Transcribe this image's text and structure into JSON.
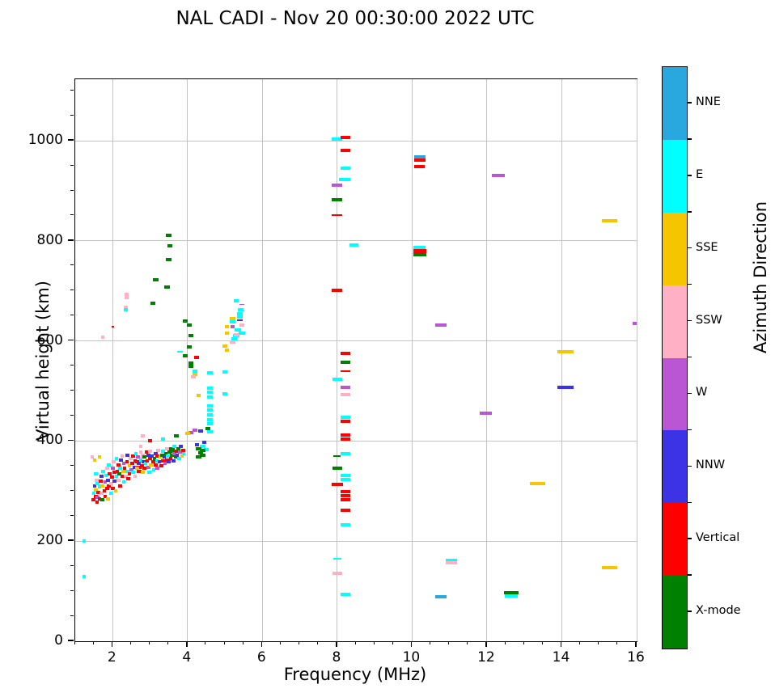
{
  "chart_data": {
    "type": "scatter",
    "title": "NAL CADI - Nov 20 00:30:00 2022 UTC",
    "xlabel": "Frequency (MHz)",
    "ylabel": "Virtual height (km)",
    "x_range": [
      1.0,
      16.0
    ],
    "y_range": [
      0,
      1123
    ],
    "x_major_ticks": [
      2,
      4,
      6,
      8,
      10,
      12,
      14,
      16
    ],
    "x_minor_step": 0.5,
    "y_major_ticks": [
      0,
      200,
      400,
      600,
      800,
      1000
    ],
    "y_minor_step": 50,
    "grid": true,
    "grid_color": "#c4c4c4",
    "colorbar": {
      "title": "Azimuth Direction",
      "categories_top_to_bottom": [
        {
          "label": "NNE",
          "color": "#29a8e0"
        },
        {
          "label": "E",
          "color": "#00ffff"
        },
        {
          "label": "SSE",
          "color": "#f5c600"
        },
        {
          "label": "SSW",
          "color": "#ffb0c4"
        },
        {
          "label": "W",
          "color": "#ba55d3"
        },
        {
          "label": "NNW",
          "color": "#3c33e6"
        },
        {
          "label": "Vertical",
          "color": "#ff0000"
        },
        {
          "label": "X-mode",
          "color": "#008000"
        }
      ]
    },
    "palette_index_order": [
      "NNE",
      "E",
      "SSE",
      "SSW",
      "W",
      "NNW",
      "Vertical",
      "X-mode"
    ],
    "point_format": "[freq_MHz, height_km, category_index, width_MHz(optional, default 0.13), thickness_km(optional, default 6.5)]",
    "points": [
      [
        7.99,
        1003,
        1,
        0.28
      ],
      [
        8.22,
        1006,
        6,
        0.25
      ],
      [
        8.22,
        981,
        6,
        0.25
      ],
      [
        8.22,
        945,
        1,
        0.25
      ],
      [
        8.2,
        922,
        1,
        0.3
      ],
      [
        8.0,
        912,
        4,
        0.28
      ],
      [
        8.0,
        882,
        7,
        0.28
      ],
      [
        8.0,
        852,
        6,
        0.28,
        3
      ],
      [
        8.45,
        791,
        1,
        0.25
      ],
      [
        8.0,
        702,
        6,
        0.28
      ],
      [
        8.22,
        575,
        6,
        0.25
      ],
      [
        8.22,
        558,
        7,
        0.25
      ],
      [
        8.22,
        539,
        6,
        0.25,
        3
      ],
      [
        8.0,
        523,
        1,
        0.25
      ],
      [
        8.22,
        507,
        4,
        0.25
      ],
      [
        8.22,
        493,
        3,
        0.25
      ],
      [
        8.22,
        448,
        1,
        0.25
      ],
      [
        8.22,
        439,
        6,
        0.25
      ],
      [
        8.22,
        412,
        6,
        0.25
      ],
      [
        8.22,
        404,
        6,
        0.25
      ],
      [
        8.22,
        375,
        1,
        0.25
      ],
      [
        8.0,
        370,
        7,
        0.2,
        3
      ],
      [
        8.0,
        345,
        7,
        0.25
      ],
      [
        8.22,
        331,
        1,
        0.25
      ],
      [
        8.22,
        323,
        1,
        0.25
      ],
      [
        8.0,
        313,
        6,
        0.3
      ],
      [
        8.22,
        299,
        6,
        0.25
      ],
      [
        8.22,
        291,
        6,
        0.25
      ],
      [
        8.22,
        283,
        6,
        0.25
      ],
      [
        8.22,
        262,
        6,
        0.25
      ],
      [
        8.22,
        233,
        1,
        0.25
      ],
      [
        8.0,
        165,
        1,
        0.22,
        3
      ],
      [
        8.0,
        135,
        3,
        0.25
      ],
      [
        8.22,
        94,
        1,
        0.25
      ],
      [
        10.2,
        968,
        0,
        0.3
      ],
      [
        10.2,
        961,
        6,
        0.3
      ],
      [
        10.2,
        948,
        6,
        0.28
      ],
      [
        10.2,
        787,
        1,
        0.32
      ],
      [
        10.2,
        780,
        6,
        0.35,
        8
      ],
      [
        10.2,
        772,
        7,
        0.35
      ],
      [
        10.77,
        632,
        4,
        0.3
      ],
      [
        12.3,
        931,
        4,
        0.35
      ],
      [
        15.28,
        840,
        2,
        0.42
      ],
      [
        14.1,
        578,
        2,
        0.42
      ],
      [
        14.1,
        507,
        5,
        0.42
      ],
      [
        11.97,
        455,
        4,
        0.32
      ],
      [
        13.35,
        315,
        2,
        0.4
      ],
      [
        11.05,
        162,
        1,
        0.3
      ],
      [
        11.05,
        156,
        3,
        0.32
      ],
      [
        10.77,
        89,
        0,
        0.3
      ],
      [
        12.65,
        97,
        7,
        0.38
      ],
      [
        12.65,
        91,
        1,
        0.35
      ],
      [
        15.28,
        147,
        2,
        0.42
      ],
      [
        15.95,
        635,
        4,
        0.12
      ],
      [
        3.5,
        811,
        7,
        0.14
      ],
      [
        3.53,
        790,
        7,
        0.14
      ],
      [
        3.5,
        763,
        7,
        0.14
      ],
      [
        3.15,
        723,
        7,
        0.14
      ],
      [
        3.45,
        708,
        7,
        0.14
      ],
      [
        3.08,
        676,
        7,
        0.14
      ],
      [
        2.37,
        693,
        3,
        0.1
      ],
      [
        2.37,
        686,
        3,
        0.1
      ],
      [
        2.35,
        668,
        3,
        0.1
      ],
      [
        2.35,
        662,
        1,
        0.1
      ],
      [
        2.0,
        628,
        6,
        0.07,
        3
      ],
      [
        1.73,
        608,
        3,
        0.08
      ],
      [
        1.24,
        200,
        1,
        0.1
      ],
      [
        1.24,
        129,
        1,
        0.1
      ],
      [
        5.3,
        680,
        1,
        0.14
      ],
      [
        5.45,
        673,
        4,
        0.14,
        3
      ],
      [
        5.42,
        662,
        1,
        0.14
      ],
      [
        5.4,
        655,
        1,
        0.16
      ],
      [
        5.4,
        648,
        1,
        0.16
      ],
      [
        5.2,
        645,
        2,
        0.14
      ],
      [
        5.4,
        641,
        5,
        0.14,
        3
      ],
      [
        5.2,
        638,
        1,
        0.14
      ],
      [
        5.45,
        632,
        3,
        0.14
      ],
      [
        5.05,
        628,
        2,
        0.12
      ],
      [
        5.2,
        628,
        4,
        0.12
      ],
      [
        5.35,
        622,
        1,
        0.18
      ],
      [
        5.45,
        615,
        1,
        0.16
      ],
      [
        5.3,
        610,
        1,
        0.16
      ],
      [
        5.05,
        616,
        2,
        0.12
      ],
      [
        5.3,
        613,
        3,
        0.12
      ],
      [
        5.25,
        605,
        1,
        0.14
      ],
      [
        5.2,
        598,
        3,
        0.14
      ],
      [
        5.0,
        590,
        2,
        0.12
      ],
      [
        5.05,
        582,
        2,
        0.12
      ],
      [
        5.0,
        538,
        1,
        0.12
      ],
      [
        5.0,
        495,
        1,
        0.12
      ],
      [
        3.95,
        640,
        7,
        0.13
      ],
      [
        4.05,
        632,
        7,
        0.13
      ],
      [
        4.1,
        610,
        7,
        0.13
      ],
      [
        4.05,
        588,
        7,
        0.13
      ],
      [
        3.8,
        578,
        1,
        0.14,
        3
      ],
      [
        3.95,
        571,
        7,
        0.13
      ],
      [
        4.25,
        567,
        6,
        0.13
      ],
      [
        4.1,
        556,
        7,
        0.13
      ],
      [
        4.1,
        549,
        7,
        0.13
      ],
      [
        4.2,
        540,
        1,
        0.12
      ],
      [
        4.2,
        534,
        2,
        0.12
      ],
      [
        4.15,
        529,
        3,
        0.12
      ],
      [
        4.6,
        537,
        1,
        0.14
      ],
      [
        4.3,
        491,
        2,
        0.12
      ],
      [
        4.6,
        505,
        1,
        0.16
      ],
      [
        4.6,
        497,
        1,
        0.16
      ],
      [
        4.6,
        488,
        1,
        0.16
      ],
      [
        4.6,
        470,
        1,
        0.16
      ],
      [
        4.6,
        462,
        1,
        0.16
      ],
      [
        4.6,
        452,
        1,
        0.16
      ],
      [
        4.6,
        443,
        1,
        0.16
      ],
      [
        4.6,
        434,
        1,
        0.16
      ],
      [
        4.55,
        425,
        7,
        0.14
      ],
      [
        4.6,
        418,
        1,
        0.14
      ],
      [
        4.1,
        417,
        4,
        0.13
      ],
      [
        4.0,
        415,
        2,
        0.12
      ],
      [
        4.2,
        421,
        4,
        0.12
      ],
      [
        4.35,
        420,
        5,
        0.12
      ],
      [
        4.25,
        392,
        5,
        0.12
      ],
      [
        4.4,
        390,
        1,
        0.14
      ],
      [
        4.45,
        398,
        5,
        0.12
      ],
      [
        4.5,
        383,
        1,
        0.12
      ],
      [
        4.3,
        385,
        7,
        0.14
      ],
      [
        4.35,
        377,
        7,
        0.14
      ],
      [
        4.3,
        369,
        7,
        0.14
      ],
      [
        4.4,
        382,
        7,
        0.14
      ],
      [
        4.4,
        371,
        7,
        0.14
      ],
      [
        3.55,
        385,
        7,
        0.14
      ],
      [
        3.65,
        380,
        7,
        0.14
      ],
      [
        3.6,
        372,
        7,
        0.14
      ],
      [
        3.7,
        410,
        7,
        0.14
      ],
      [
        3.35,
        404,
        1,
        0.12
      ],
      [
        3.0,
        400,
        6,
        0.12
      ],
      [
        2.8,
        410,
        3,
        0.1
      ],
      [
        2.75,
        390,
        3,
        0.1
      ],
      [
        2.75,
        378,
        3,
        0.1
      ],
      [
        2.75,
        365,
        3,
        0.1
      ],
      [
        2.7,
        348,
        6,
        0.14
      ],
      [
        2.7,
        340,
        6,
        0.12
      ],
      [
        1.45,
        368,
        3,
        0.1
      ],
      [
        1.65,
        368,
        2,
        0.1
      ],
      [
        1.52,
        362,
        2,
        0.1
      ],
      [
        1.48,
        282,
        6,
        0.1
      ],
      [
        1.5,
        295,
        1,
        0.1
      ],
      [
        1.52,
        310,
        5,
        0.1
      ],
      [
        1.55,
        290,
        6,
        0.1
      ],
      [
        1.55,
        302,
        2,
        0.1
      ],
      [
        1.57,
        322,
        3,
        0.1
      ],
      [
        1.58,
        278,
        6,
        0.1
      ],
      [
        1.6,
        288,
        4,
        0.1
      ],
      [
        1.6,
        315,
        1,
        0.1
      ],
      [
        1.55,
        335,
        1,
        0.1
      ],
      [
        1.62,
        298,
        6,
        0.1
      ],
      [
        1.65,
        285,
        6,
        0.1
      ],
      [
        1.65,
        308,
        1,
        0.1
      ],
      [
        1.68,
        320,
        6,
        0.1
      ],
      [
        1.7,
        295,
        3,
        0.1
      ],
      [
        1.7,
        330,
        5,
        0.1
      ],
      [
        1.72,
        310,
        2,
        0.1
      ],
      [
        1.73,
        282,
        7,
        0.1
      ],
      [
        1.75,
        340,
        1,
        0.1
      ],
      [
        1.78,
        300,
        6,
        0.1
      ],
      [
        1.8,
        318,
        4,
        0.1
      ],
      [
        1.8,
        290,
        6,
        0.1
      ],
      [
        1.82,
        332,
        1,
        0.1
      ],
      [
        1.85,
        305,
        6,
        0.1
      ],
      [
        1.85,
        345,
        3,
        0.1
      ],
      [
        1.88,
        322,
        5,
        0.1
      ],
      [
        1.9,
        310,
        6,
        0.1
      ],
      [
        1.9,
        352,
        1,
        0.1
      ],
      [
        1.88,
        285,
        2,
        0.1
      ],
      [
        1.92,
        335,
        6,
        0.1
      ],
      [
        1.95,
        315,
        3,
        0.1
      ],
      [
        1.95,
        295,
        1,
        0.1
      ],
      [
        1.98,
        328,
        6,
        0.1
      ],
      [
        2.0,
        345,
        4,
        0.1
      ],
      [
        2.0,
        305,
        6,
        0.1
      ],
      [
        2.02,
        358,
        3,
        0.1
      ],
      [
        2.05,
        320,
        5,
        0.1
      ],
      [
        2.05,
        338,
        6,
        0.1
      ],
      [
        2.08,
        300,
        2,
        0.1
      ],
      [
        2.1,
        330,
        1,
        0.1
      ],
      [
        2.1,
        365,
        1,
        0.1
      ],
      [
        2.12,
        340,
        6,
        0.1
      ],
      [
        2.15,
        322,
        3,
        0.1
      ],
      [
        2.15,
        352,
        6,
        0.1
      ],
      [
        2.18,
        335,
        7,
        0.1
      ],
      [
        2.2,
        310,
        6,
        0.1
      ],
      [
        2.2,
        345,
        1,
        0.1
      ],
      [
        2.22,
        362,
        5,
        0.1
      ],
      [
        2.25,
        330,
        6,
        0.1
      ],
      [
        2.25,
        370,
        3,
        0.1
      ],
      [
        2.28,
        340,
        2,
        0.1
      ],
      [
        2.3,
        355,
        4,
        0.1
      ],
      [
        2.3,
        318,
        1,
        0.1
      ],
      [
        2.32,
        345,
        6,
        0.1
      ],
      [
        2.35,
        330,
        3,
        0.1
      ],
      [
        2.38,
        358,
        6,
        0.1
      ],
      [
        2.4,
        340,
        1,
        0.1
      ],
      [
        2.4,
        372,
        5,
        0.1
      ],
      [
        2.42,
        325,
        6,
        0.1
      ],
      [
        2.45,
        350,
        2,
        0.1
      ],
      [
        2.45,
        335,
        6,
        0.1
      ],
      [
        2.48,
        365,
        3,
        0.1
      ],
      [
        2.5,
        342,
        4,
        0.1
      ],
      [
        2.52,
        355,
        6,
        0.1
      ],
      [
        2.55,
        338,
        1,
        0.1
      ],
      [
        2.55,
        370,
        6,
        0.1
      ],
      [
        2.58,
        348,
        5,
        0.1
      ],
      [
        2.6,
        330,
        3,
        0.1
      ],
      [
        2.6,
        360,
        6,
        0.1
      ],
      [
        2.62,
        375,
        1,
        0.1
      ],
      [
        2.65,
        345,
        2,
        0.1
      ],
      [
        2.65,
        358,
        6,
        0.1
      ],
      [
        2.68,
        368,
        4,
        0.1
      ],
      [
        2.7,
        355,
        5,
        0.1
      ],
      [
        2.72,
        340,
        6,
        0.1
      ],
      [
        2.75,
        362,
        1,
        0.1
      ],
      [
        2.78,
        350,
        6,
        0.1
      ],
      [
        2.8,
        372,
        3,
        0.1
      ],
      [
        2.8,
        338,
        2,
        0.1
      ],
      [
        2.82,
        358,
        5,
        0.1
      ],
      [
        2.85,
        345,
        6,
        0.1
      ],
      [
        2.85,
        368,
        7,
        0.1
      ],
      [
        2.88,
        355,
        1,
        0.1
      ],
      [
        2.9,
        378,
        6,
        0.1
      ],
      [
        2.92,
        360,
        6,
        0.1
      ],
      [
        2.95,
        348,
        4,
        0.1
      ],
      [
        2.95,
        372,
        5,
        0.1
      ],
      [
        2.98,
        338,
        1,
        0.1
      ],
      [
        3.0,
        365,
        6,
        0.1
      ],
      [
        3.0,
        380,
        3,
        0.1
      ],
      [
        3.02,
        352,
        2,
        0.1
      ],
      [
        3.05,
        370,
        5,
        0.1
      ],
      [
        3.08,
        358,
        6,
        0.1
      ],
      [
        3.1,
        342,
        1,
        0.1
      ],
      [
        3.12,
        365,
        7,
        0.1
      ],
      [
        3.15,
        352,
        6,
        0.1
      ],
      [
        3.15,
        375,
        5,
        0.1
      ],
      [
        3.18,
        360,
        1,
        0.1
      ],
      [
        3.2,
        345,
        4,
        0.1
      ],
      [
        3.2,
        370,
        6,
        0.1
      ],
      [
        3.22,
        382,
        3,
        0.1
      ],
      [
        3.25,
        358,
        5,
        0.1
      ],
      [
        3.28,
        368,
        2,
        0.1
      ],
      [
        3.3,
        350,
        6,
        0.1
      ],
      [
        3.32,
        372,
        7,
        0.1
      ],
      [
        3.35,
        360,
        6,
        0.1
      ],
      [
        3.35,
        380,
        1,
        0.1
      ],
      [
        3.38,
        368,
        5,
        0.1
      ],
      [
        3.4,
        355,
        4,
        0.1
      ],
      [
        3.42,
        375,
        7,
        0.1
      ],
      [
        3.45,
        362,
        6,
        0.1
      ],
      [
        3.45,
        385,
        3,
        0.1
      ],
      [
        3.48,
        370,
        1,
        0.1
      ],
      [
        3.5,
        358,
        5,
        0.1
      ],
      [
        3.52,
        378,
        7,
        0.1
      ],
      [
        3.55,
        365,
        6,
        0.1
      ],
      [
        3.58,
        372,
        7,
        0.1
      ],
      [
        3.6,
        385,
        7,
        0.1
      ],
      [
        3.62,
        360,
        5,
        0.1
      ],
      [
        3.65,
        375,
        4,
        0.1
      ],
      [
        3.65,
        390,
        1,
        0.1
      ],
      [
        3.68,
        368,
        7,
        0.1
      ],
      [
        3.7,
        380,
        6,
        0.1
      ],
      [
        3.72,
        372,
        5,
        0.1
      ],
      [
        3.75,
        385,
        7,
        0.1
      ],
      [
        3.78,
        365,
        1,
        0.1
      ],
      [
        3.8,
        378,
        4,
        0.1
      ],
      [
        3.82,
        390,
        5,
        0.1
      ],
      [
        3.85,
        370,
        2,
        0.1
      ],
      [
        3.88,
        382,
        6,
        0.1
      ],
      [
        3.9,
        375,
        1,
        0.1
      ]
    ]
  }
}
